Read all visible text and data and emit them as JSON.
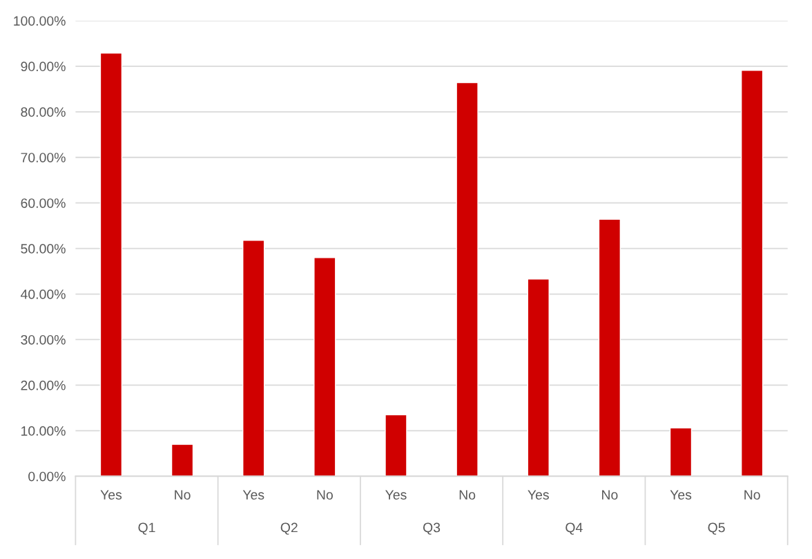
{
  "chart_data": {
    "type": "bar",
    "categories": [
      "Yes",
      "No",
      "Yes",
      "No",
      "Yes",
      "No",
      "Yes",
      "No",
      "Yes",
      "No"
    ],
    "values": [
      92.9,
      7.0,
      51.8,
      48.0,
      13.5,
      86.4,
      43.3,
      56.4,
      10.6,
      89.1
    ],
    "color": "#d00000",
    "annotations": [
      "Q1",
      "Q2",
      "Q3",
      "Q4",
      "Q5"
    ],
    "ylim": [
      0,
      100
    ],
    "yticks": [
      {
        "value": 0,
        "label": "0.00%"
      },
      {
        "value": 10,
        "label": "10.00%"
      },
      {
        "value": 20,
        "label": "20.00%"
      },
      {
        "value": 30,
        "label": "30.00%"
      },
      {
        "value": 40,
        "label": "40.00%"
      },
      {
        "value": 50,
        "label": "50.00%"
      },
      {
        "value": 60,
        "label": "60.00%"
      },
      {
        "value": 70,
        "label": "70.00%"
      },
      {
        "value": 80,
        "label": "80.00%"
      },
      {
        "value": 90,
        "label": "90.00%"
      },
      {
        "value": 100,
        "label": "100.00%"
      }
    ],
    "grid": "y"
  }
}
